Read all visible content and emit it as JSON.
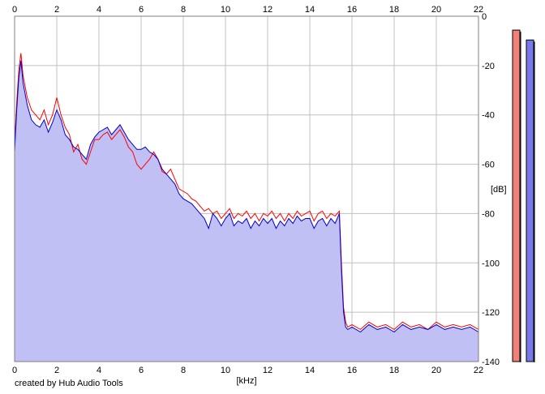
{
  "chart_data": {
    "type": "area",
    "title": "",
    "xlabel": "[kHz]",
    "ylabel": "[dB]",
    "xlim": [
      0,
      22
    ],
    "ylim": [
      -140,
      0
    ],
    "x_ticks": [
      "0",
      "2",
      "4",
      "6",
      "8",
      "10",
      "12",
      "14",
      "16",
      "18",
      "20",
      "22"
    ],
    "y_ticks": [
      "0",
      "-20",
      "-40",
      "-60",
      "-80",
      "-100",
      "-120",
      "-140"
    ],
    "grid": true,
    "series": [
      {
        "color": "#ff0000",
        "x": [
          0,
          0.1,
          0.2,
          0.3,
          0.4,
          0.6,
          0.8,
          1,
          1.2,
          1.4,
          1.6,
          1.8,
          2,
          2.2,
          2.4,
          2.6,
          2.8,
          3,
          3.2,
          3.4,
          3.6,
          3.8,
          4,
          4.2,
          4.4,
          4.6,
          4.8,
          5,
          5.2,
          5.4,
          5.6,
          5.8,
          6,
          6.2,
          6.4,
          6.6,
          6.8,
          7,
          7.2,
          7.4,
          7.6,
          7.8,
          8,
          8.2,
          8.4,
          8.6,
          8.8,
          9,
          9.2,
          9.4,
          9.6,
          9.8,
          10,
          10.2,
          10.4,
          10.6,
          10.8,
          11,
          11.2,
          11.4,
          11.6,
          11.8,
          12,
          12.2,
          12.4,
          12.6,
          12.8,
          13,
          13.2,
          13.4,
          13.6,
          13.8,
          14,
          14.2,
          14.4,
          14.6,
          14.8,
          15,
          15.2,
          15.4,
          15.5,
          15.6,
          15.7,
          15.8,
          16,
          16.4,
          16.8,
          17.2,
          17.6,
          18,
          18.4,
          18.8,
          19.2,
          19.6,
          20,
          20.4,
          20.8,
          21.2,
          21.6,
          22
        ],
        "values": [
          -52,
          -35,
          -22,
          -15,
          -24,
          -33,
          -38,
          -40,
          -42,
          -38,
          -44,
          -40,
          -33,
          -40,
          -45,
          -48,
          -55,
          -52,
          -58,
          -60,
          -55,
          -50,
          -50,
          -48,
          -47,
          -50,
          -48,
          -46,
          -49,
          -53,
          -55,
          -60,
          -62,
          -60,
          -58,
          -55,
          -58,
          -63,
          -64,
          -62,
          -66,
          -70,
          -71,
          -72,
          -74,
          -75,
          -77,
          -79,
          -78,
          -80,
          -79,
          -82,
          -80,
          -78,
          -82,
          -80,
          -81,
          -79,
          -82,
          -80,
          -83,
          -80,
          -81,
          -79,
          -82,
          -80,
          -83,
          -80,
          -82,
          -79,
          -81,
          -80,
          -79,
          -83,
          -80,
          -79,
          -82,
          -80,
          -81,
          -79,
          -100,
          -118,
          -124,
          -126,
          -125,
          -127,
          -124,
          -126,
          -125,
          -127,
          -124,
          -126,
          -125,
          -127,
          -124,
          -126,
          -125,
          -126,
          -125,
          -127
        ]
      },
      {
        "color": "#0000cc",
        "fill": "#c0c0f4",
        "x": [
          0,
          0.1,
          0.2,
          0.3,
          0.4,
          0.6,
          0.8,
          1,
          1.2,
          1.4,
          1.6,
          1.8,
          2,
          2.2,
          2.4,
          2.6,
          2.8,
          3,
          3.2,
          3.4,
          3.6,
          3.8,
          4,
          4.2,
          4.4,
          4.6,
          4.8,
          5,
          5.2,
          5.4,
          5.6,
          5.8,
          6,
          6.2,
          6.4,
          6.6,
          6.8,
          7,
          7.2,
          7.4,
          7.6,
          7.8,
          8,
          8.2,
          8.4,
          8.6,
          8.8,
          9,
          9.2,
          9.4,
          9.6,
          9.8,
          10,
          10.2,
          10.4,
          10.6,
          10.8,
          11,
          11.2,
          11.4,
          11.6,
          11.8,
          12,
          12.2,
          12.4,
          12.6,
          12.8,
          13,
          13.2,
          13.4,
          13.6,
          13.8,
          14,
          14.2,
          14.4,
          14.6,
          14.8,
          15,
          15.2,
          15.4,
          15.5,
          15.6,
          15.7,
          15.8,
          16,
          16.4,
          16.8,
          17.2,
          17.6,
          18,
          18.4,
          18.8,
          19.2,
          19.6,
          20,
          20.4,
          20.8,
          21.2,
          21.6,
          22
        ],
        "values": [
          -55,
          -38,
          -25,
          -18,
          -27,
          -36,
          -42,
          -44,
          -45,
          -42,
          -47,
          -43,
          -38,
          -42,
          -48,
          -50,
          -53,
          -54,
          -56,
          -58,
          -52,
          -49,
          -47,
          -46,
          -45,
          -48,
          -46,
          -44,
          -47,
          -50,
          -52,
          -54,
          -54,
          -53,
          -55,
          -56,
          -58,
          -62,
          -64,
          -66,
          -68,
          -72,
          -74,
          -75,
          -76,
          -78,
          -80,
          -82,
          -86,
          -80,
          -82,
          -85,
          -82,
          -80,
          -85,
          -83,
          -84,
          -82,
          -86,
          -83,
          -85,
          -82,
          -84,
          -82,
          -86,
          -83,
          -85,
          -82,
          -84,
          -81,
          -83,
          -82,
          -82,
          -86,
          -83,
          -82,
          -85,
          -82,
          -84,
          -80,
          -103,
          -120,
          -126,
          -127,
          -126,
          -128,
          -125,
          -127,
          -126,
          -128,
          -125,
          -127,
          -126,
          -127,
          -125,
          -127,
          -126,
          -127,
          -126,
          -128
        ]
      }
    ],
    "level_meters": [
      {
        "color": "#f08078",
        "level_db": -3
      },
      {
        "color": "#7878e8",
        "level_db": -7
      }
    ]
  },
  "footer": {
    "credit": "created by Hub Audio Tools"
  }
}
